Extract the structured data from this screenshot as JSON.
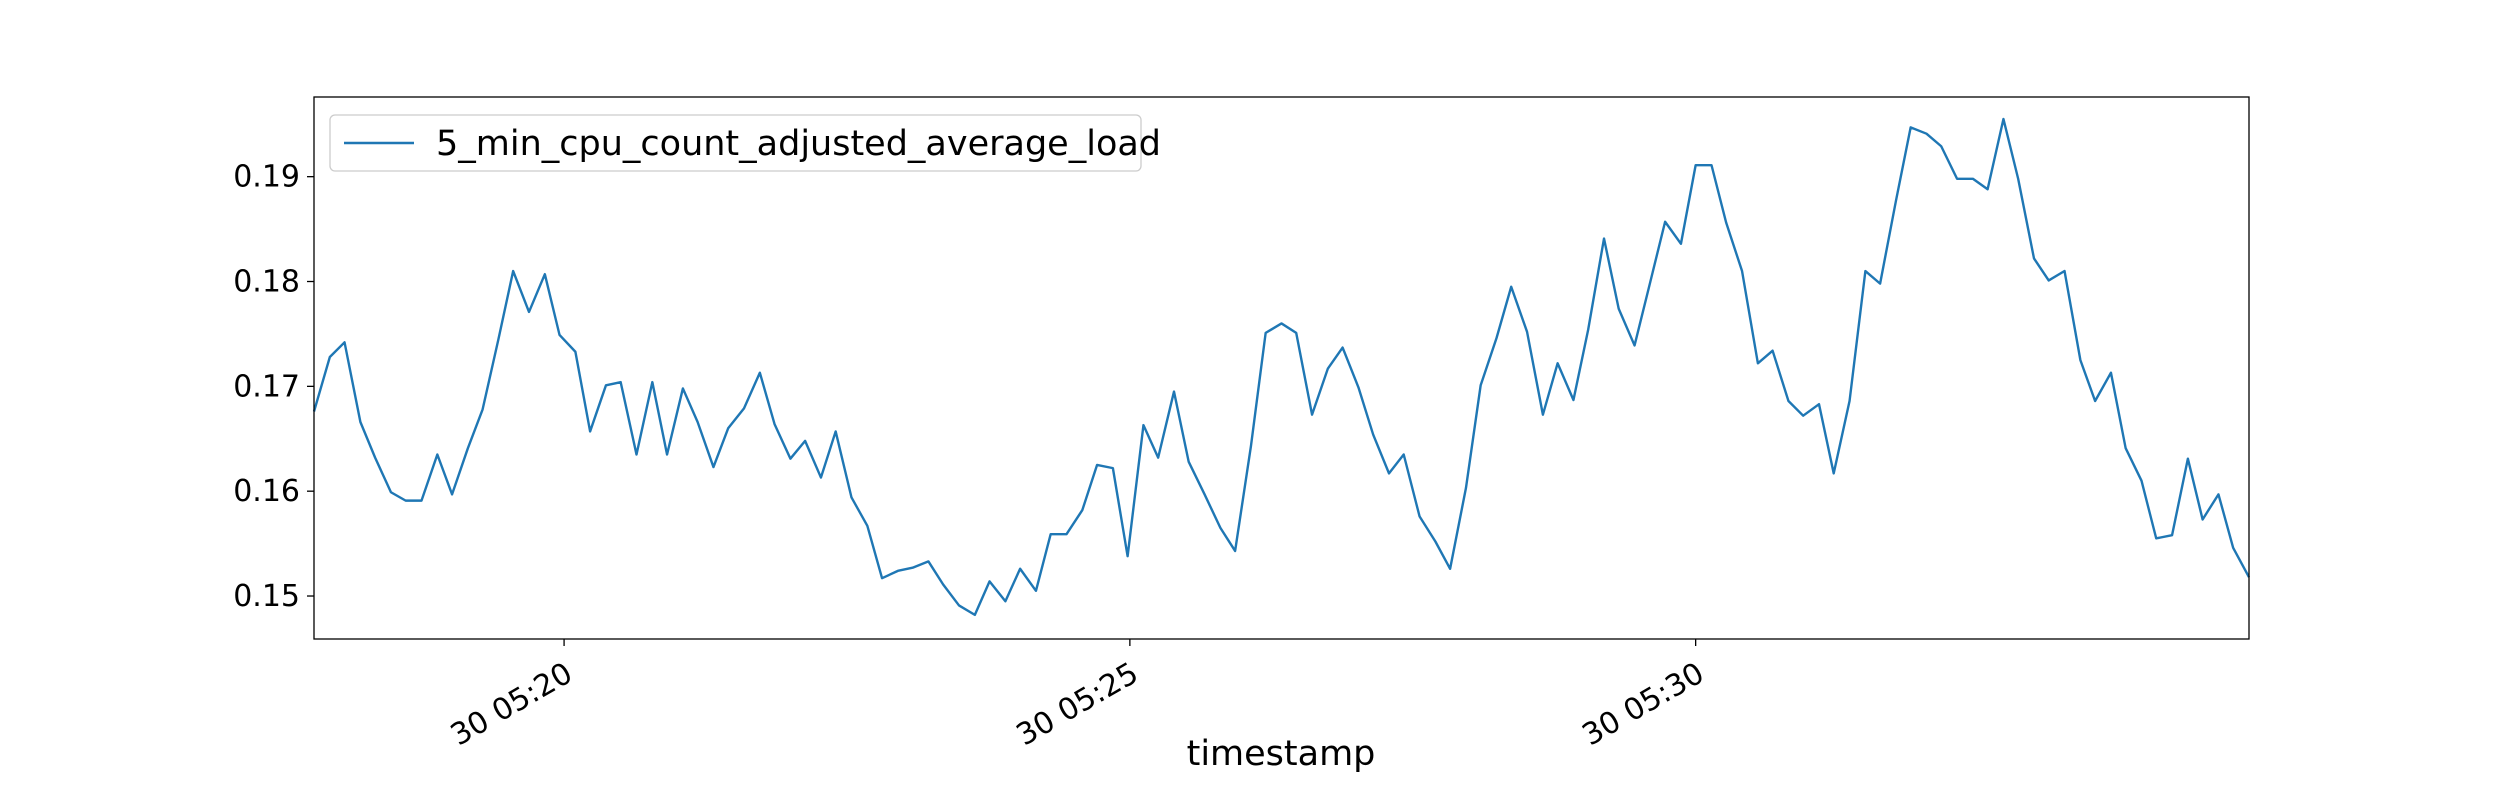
{
  "chart_data": {
    "type": "line",
    "xlabel": "timestamp",
    "x": [
      17.79,
      17.93,
      18.06,
      18.2,
      18.33,
      18.47,
      18.6,
      18.74,
      18.88,
      19.01,
      19.15,
      19.28,
      19.42,
      19.55,
      19.69,
      19.83,
      19.96,
      20.1,
      20.23,
      20.37,
      20.5,
      20.64,
      20.78,
      20.91,
      21.05,
      21.18,
      21.32,
      21.45,
      21.59,
      21.73,
      21.86,
      22.0,
      22.13,
      22.27,
      22.4,
      22.54,
      22.68,
      22.81,
      22.95,
      23.08,
      23.22,
      23.35,
      23.49,
      23.63,
      23.76,
      23.9,
      24.03,
      24.17,
      24.3,
      24.44,
      24.58,
      24.71,
      24.85,
      24.98,
      25.12,
      25.25,
      25.39,
      25.52,
      25.66,
      25.8,
      25.93,
      26.07,
      26.2,
      26.34,
      26.47,
      26.61,
      26.75,
      26.88,
      27.02,
      27.15,
      27.29,
      27.42,
      27.56,
      27.7,
      27.83,
      27.97,
      28.1,
      28.24,
      28.37,
      28.51,
      28.65,
      28.78,
      28.92,
      29.05,
      29.19,
      29.32,
      29.46,
      29.6,
      29.73,
      29.87,
      30.0,
      30.14,
      30.27,
      30.41,
      30.55,
      30.68,
      30.82,
      30.95,
      31.09,
      31.22,
      31.36,
      31.5,
      31.63,
      31.77,
      31.9,
      32.04,
      32.17,
      32.31,
      32.45,
      32.58,
      32.72,
      32.85,
      32.99,
      33.12,
      33.26,
      33.4,
      33.53,
      33.67,
      33.8,
      33.94,
      34.07,
      34.21,
      34.35,
      34.48,
      34.62,
      34.75,
      34.89
    ],
    "series": [
      {
        "name": "5_min_cpu_count_adjusted_average_load",
        "color": "#1f77b4",
        "values": [
          0.1676,
          0.1728,
          0.1742,
          0.1666,
          0.1632,
          0.1599,
          0.1591,
          0.1591,
          0.1635,
          0.1597,
          0.1641,
          0.1678,
          0.1745,
          0.181,
          0.1771,
          0.1807,
          0.1749,
          0.1733,
          0.1657,
          0.1701,
          0.1704,
          0.1635,
          0.1704,
          0.1635,
          0.1698,
          0.1666,
          0.1623,
          0.166,
          0.1679,
          0.1713,
          0.1664,
          0.1631,
          0.1648,
          0.1613,
          0.1657,
          0.1594,
          0.1567,
          0.1517,
          0.1524,
          0.1527,
          0.1533,
          0.1511,
          0.1491,
          0.1482,
          0.1514,
          0.1495,
          0.1526,
          0.1505,
          0.1559,
          0.1559,
          0.1582,
          0.1625,
          0.1622,
          0.1538,
          0.1663,
          0.1632,
          0.1695,
          0.1628,
          0.1597,
          0.1565,
          0.1543,
          0.1643,
          0.1751,
          0.176,
          0.1751,
          0.1673,
          0.1717,
          0.1737,
          0.1699,
          0.1654,
          0.1617,
          0.1635,
          0.1576,
          0.1552,
          0.1526,
          0.1603,
          0.1701,
          0.1746,
          0.1795,
          0.1752,
          0.1673,
          0.1722,
          0.1687,
          0.1754,
          0.1841,
          0.1774,
          0.1739,
          0.18,
          0.1857,
          0.1836,
          0.1911,
          0.1911,
          0.1856,
          0.181,
          0.1722,
          0.1734,
          0.1686,
          0.1672,
          0.1683,
          0.1617,
          0.1686,
          0.181,
          0.1798,
          0.1877,
          0.1947,
          0.1941,
          0.1929,
          0.1898,
          0.1898,
          0.1888,
          0.1955,
          0.1898,
          0.1822,
          0.1801,
          0.181,
          0.1725,
          0.1686,
          0.1713,
          0.1641,
          0.161,
          0.1555,
          0.1558,
          0.1631,
          0.1573,
          0.1597,
          0.1546,
          0.1518
        ]
      }
    ],
    "xlim": [
      17.79,
      34.89
    ],
    "xticks": [
      {
        "value": 20,
        "label": "30 05:20"
      },
      {
        "value": 25,
        "label": "30 05:25"
      },
      {
        "value": 30,
        "label": "30 05:30"
      }
    ],
    "ylim": [
      0.1459,
      0.1976
    ],
    "yticks": [
      0.15,
      0.16,
      0.17,
      0.18,
      0.19
    ],
    "grid": false,
    "legend": "upper left"
  }
}
